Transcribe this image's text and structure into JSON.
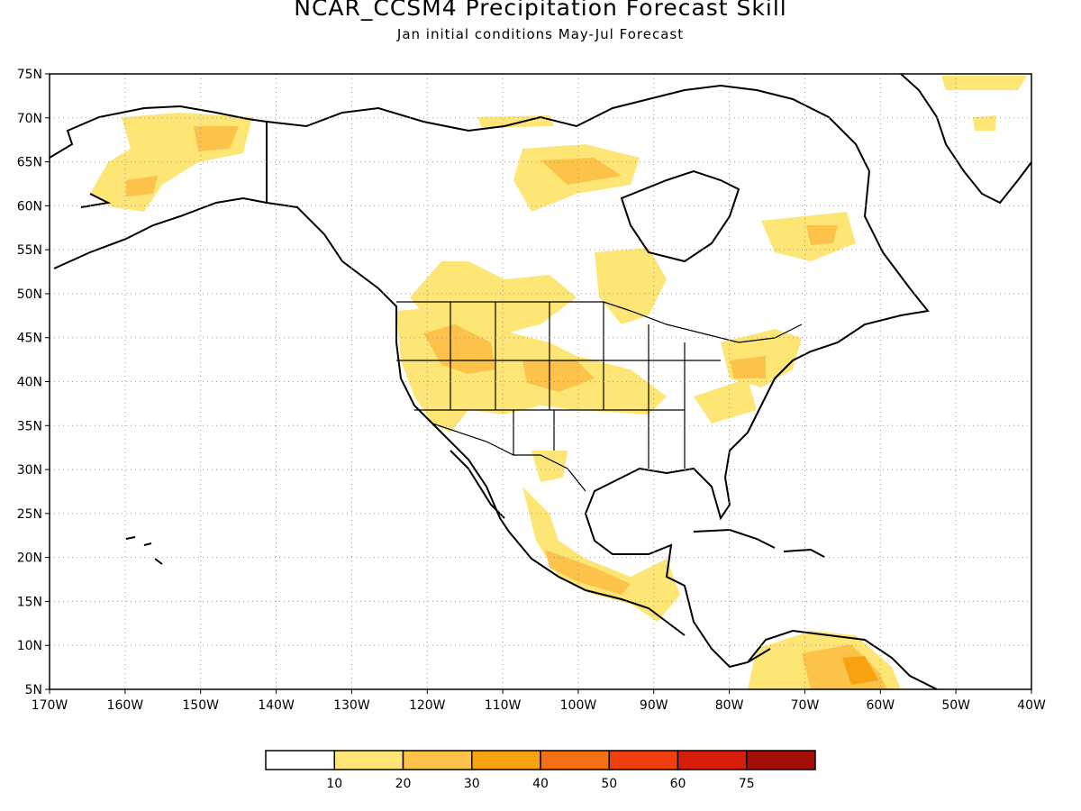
{
  "title": "NCAR_CCSM4 Precipitation Forecast Skill",
  "subtitle": "Jan initial conditions   May-Jul Forecast",
  "map": {
    "projection": "lat-lon",
    "lon_range": [
      -170,
      -40
    ],
    "lat_range": [
      5,
      75
    ],
    "lat_ticks": [
      "75N",
      "70N",
      "65N",
      "60N",
      "55N",
      "50N",
      "45N",
      "40N",
      "35N",
      "30N",
      "25N",
      "20N",
      "15N",
      "10N",
      "5N"
    ],
    "lon_ticks": [
      "170W",
      "160W",
      "150W",
      "140W",
      "130W",
      "120W",
      "110W",
      "100W",
      "90W",
      "80W",
      "70W",
      "60W",
      "50W",
      "40W"
    ],
    "gridlines": "dotted"
  },
  "legend": {
    "labels": [
      "10",
      "20",
      "30",
      "40",
      "50",
      "60",
      "75"
    ],
    "colors": [
      "#ffffff",
      "#fde675",
      "#fdc24a",
      "#f9a20f",
      "#f57015",
      "#f0400f",
      "#d61d0a",
      "#a50e08"
    ]
  },
  "chart_data": {
    "type": "heatmap",
    "title": "NCAR_CCSM4 Precipitation Forecast Skill",
    "subtitle": "Jan initial conditions   May-Jul Forecast",
    "x_range": [
      -170,
      -40
    ],
    "y_range": [
      5,
      75
    ],
    "levels": [
      10,
      20,
      30,
      40,
      50,
      60,
      75
    ],
    "regions": [
      {
        "lon": -152,
        "lat": 67,
        "level": 20
      },
      {
        "lon": -155,
        "lat": 62,
        "level": 20
      },
      {
        "lon": -118,
        "lat": 44,
        "level": 20
      },
      {
        "lon": -114,
        "lat": 42,
        "level": 20
      },
      {
        "lon": -98,
        "lat": 63,
        "level": 20
      },
      {
        "lon": -65,
        "lat": 56,
        "level": 20
      },
      {
        "lon": -64,
        "lat": 8,
        "level": 30
      },
      {
        "lon": -100,
        "lat": 18,
        "level": 20
      },
      {
        "lon": -108,
        "lat": 48,
        "level": 20
      },
      {
        "lon": -102,
        "lat": 41,
        "level": 20
      }
    ]
  }
}
